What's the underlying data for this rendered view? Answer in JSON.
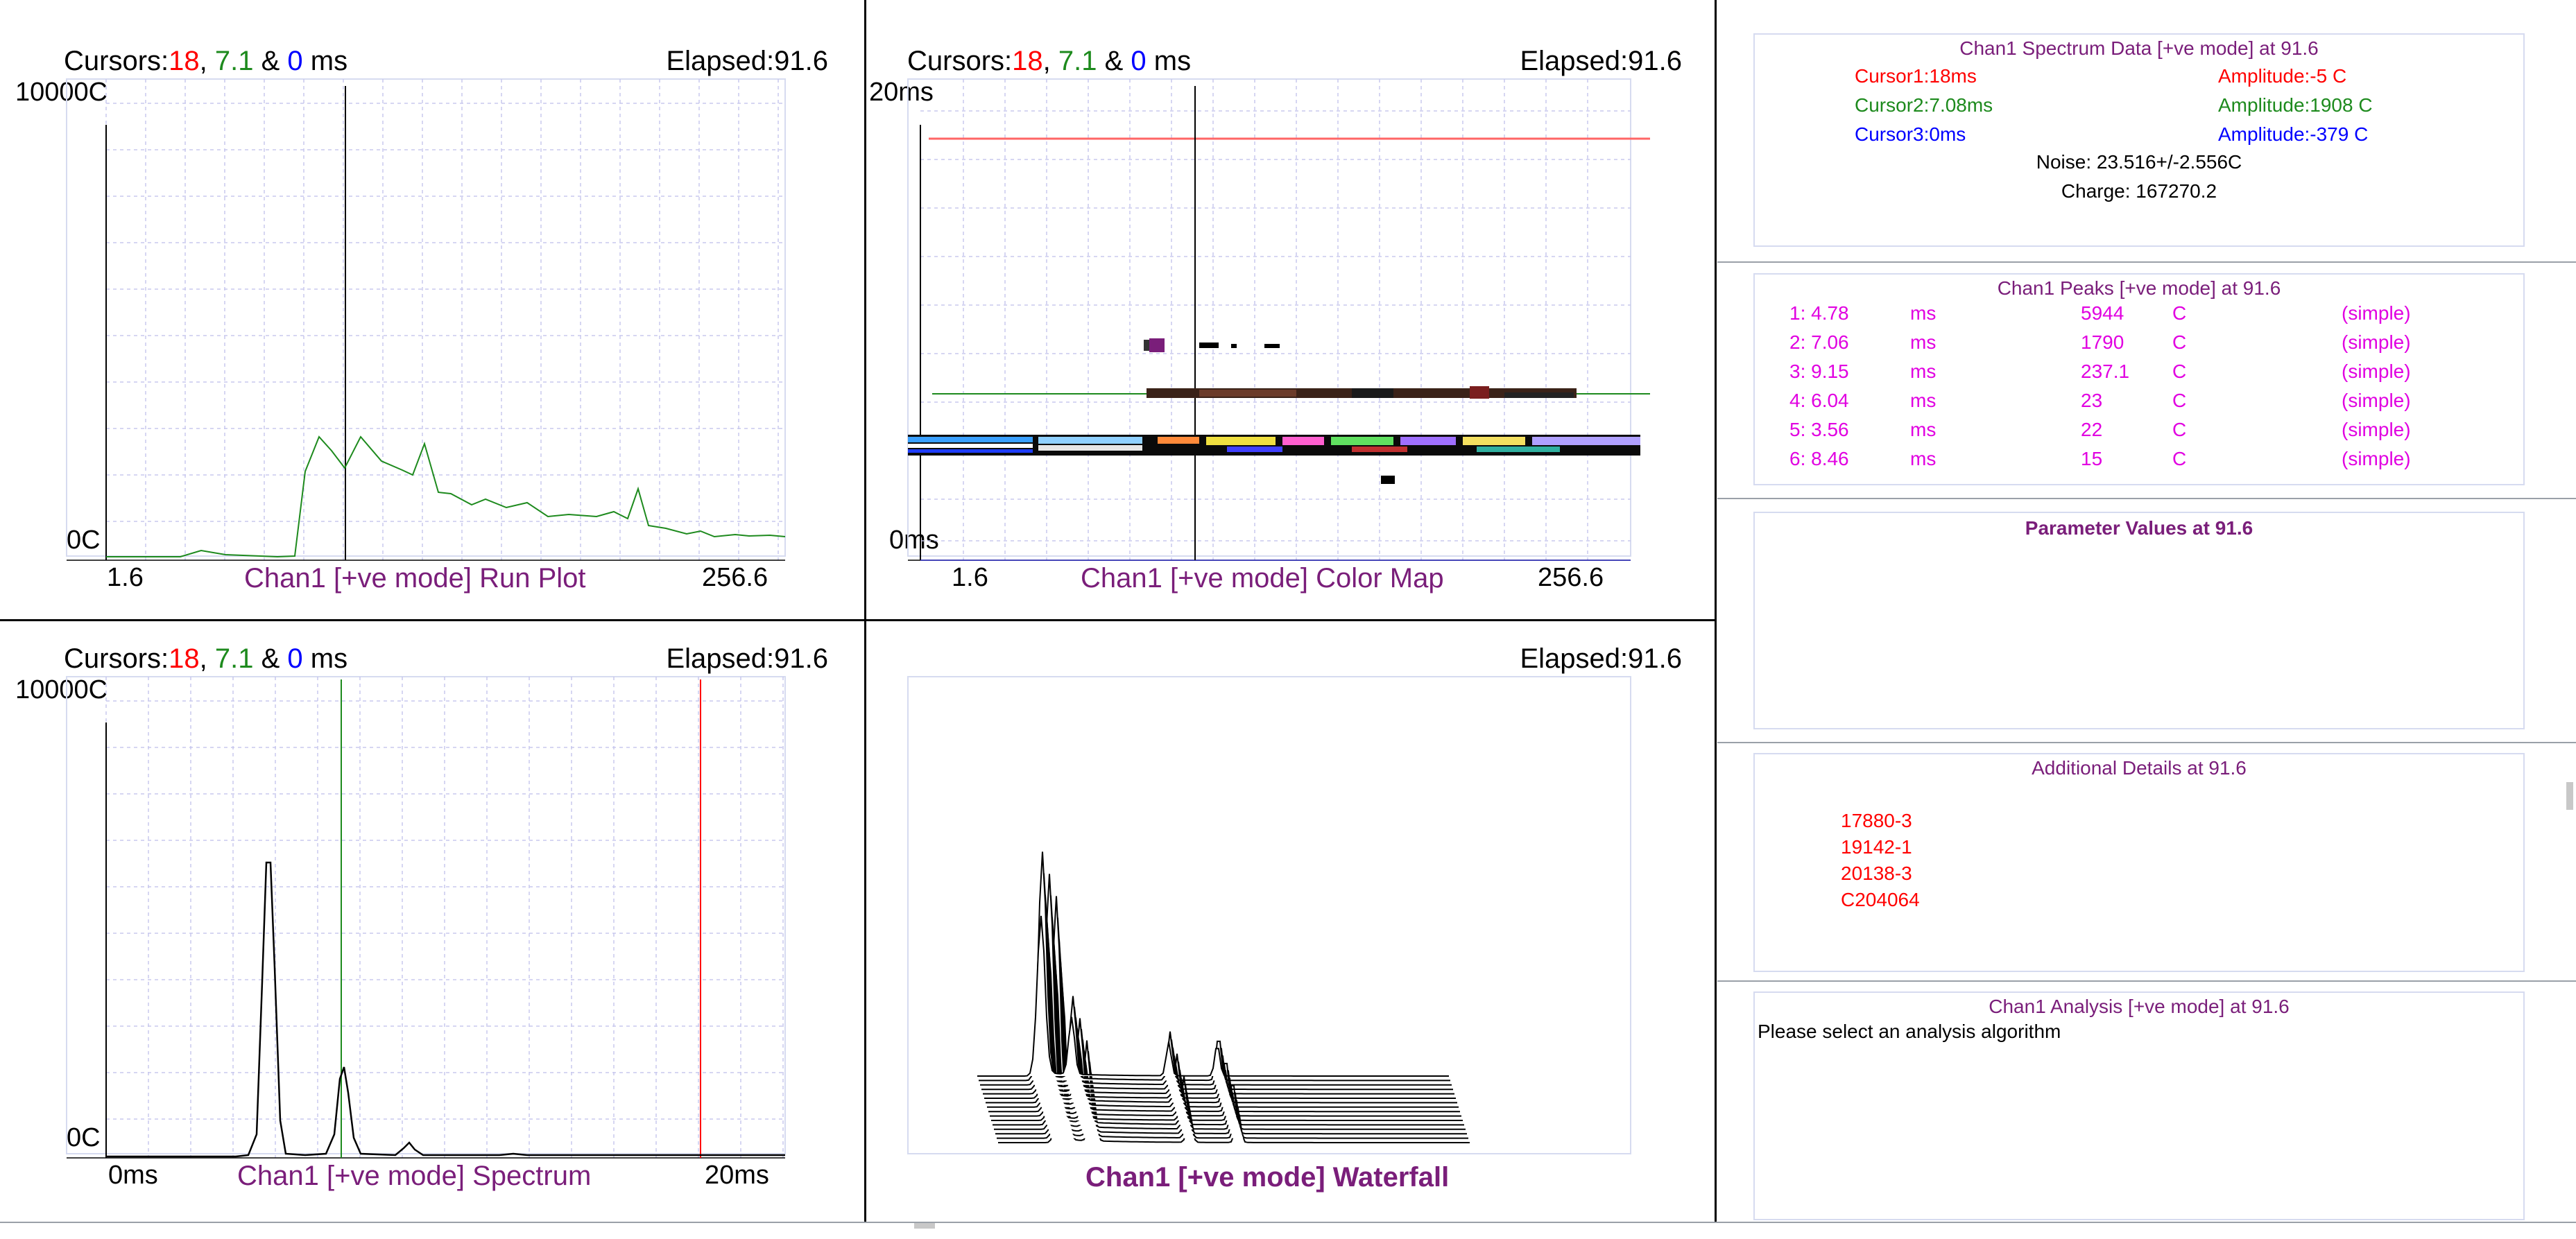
{
  "colors": {
    "red": "#ff0000",
    "green": "#1d8a1d",
    "blue": "#0000ff",
    "purple": "#7a1e7a",
    "magenta": "#e100e1",
    "grid": "#c8c8ee"
  },
  "plots": {
    "run_plot": {
      "cursors_label": "Cursors:",
      "c1": "18",
      "sep1": ", ",
      "c2": "7.1",
      "sep2": " & ",
      "c3": "0",
      "unit": " ms",
      "elapsed": "Elapsed:91.6",
      "ymax": "10000C",
      "ymin": "0C",
      "xmin": "1.6",
      "xmax": "256.6",
      "title": "Chan1 [+ve mode] Run Plot"
    },
    "color_map": {
      "cursors_label": "Cursors:",
      "c1": "18",
      "sep1": ", ",
      "c2": "7.1",
      "sep2": " & ",
      "c3": "0",
      "unit": " ms",
      "elapsed": "Elapsed:91.6",
      "ymax": "20ms",
      "ymin": "0ms",
      "xmin": "1.6",
      "xmax": "256.6",
      "title": "Chan1 [+ve mode] Color Map"
    },
    "spectrum": {
      "cursors_label": "Cursors:",
      "c1": "18",
      "sep1": ", ",
      "c2": "7.1",
      "sep2": " & ",
      "c3": "0",
      "unit": " ms",
      "elapsed": "Elapsed:91.6",
      "ymax": "10000C",
      "ymin": "0C",
      "xmin": "0ms",
      "xmax": "20ms",
      "title": "Chan1 [+ve mode] Spectrum"
    },
    "waterfall": {
      "elapsed": "Elapsed:91.6",
      "title": "Chan1 [+ve mode] Waterfall"
    }
  },
  "spectrum_data": {
    "title": "Chan1 Spectrum Data [+ve mode] at 91.6",
    "cursor1": "Cursor1:18ms",
    "amp1": "Amplitude:-5 C",
    "cursor2": "Cursor2:7.08ms",
    "amp2": "Amplitude:1908 C",
    "cursor3": "Cursor3:0ms",
    "amp3": "Amplitude:-379 C",
    "noise": "Noise: 23.516+/-2.556C",
    "charge": "Charge: 167270.2"
  },
  "peaks": {
    "title": "Chan1 Peaks [+ve mode] at 91.6",
    "rows": [
      {
        "idx": "1: 4.78",
        "unit": "ms",
        "amp": "5944",
        "aunit": "C",
        "method": "(simple)"
      },
      {
        "idx": "2: 7.06",
        "unit": "ms",
        "amp": "1790",
        "aunit": "C",
        "method": "(simple)"
      },
      {
        "idx": "3: 9.15",
        "unit": "ms",
        "amp": "237.1",
        "aunit": "C",
        "method": "(simple)"
      },
      {
        "idx": "4: 6.04",
        "unit": "ms",
        "amp": "23",
        "aunit": "C",
        "method": "(simple)"
      },
      {
        "idx": "5: 3.56",
        "unit": "ms",
        "amp": "22",
        "aunit": "C",
        "method": "(simple)"
      },
      {
        "idx": "6: 8.46",
        "unit": "ms",
        "amp": "15",
        "aunit": "C",
        "method": "(simple)"
      }
    ]
  },
  "parameters": {
    "title": "Parameter Values at 91.6"
  },
  "details": {
    "title": "Additional Details at 91.6",
    "items": [
      "17880-3",
      "19142-1",
      "20138-3",
      "C204064"
    ]
  },
  "analysis": {
    "title": "Chan1 Analysis [+ve mode] at 91.6",
    "message": "Please select an analysis algorithm"
  }
}
